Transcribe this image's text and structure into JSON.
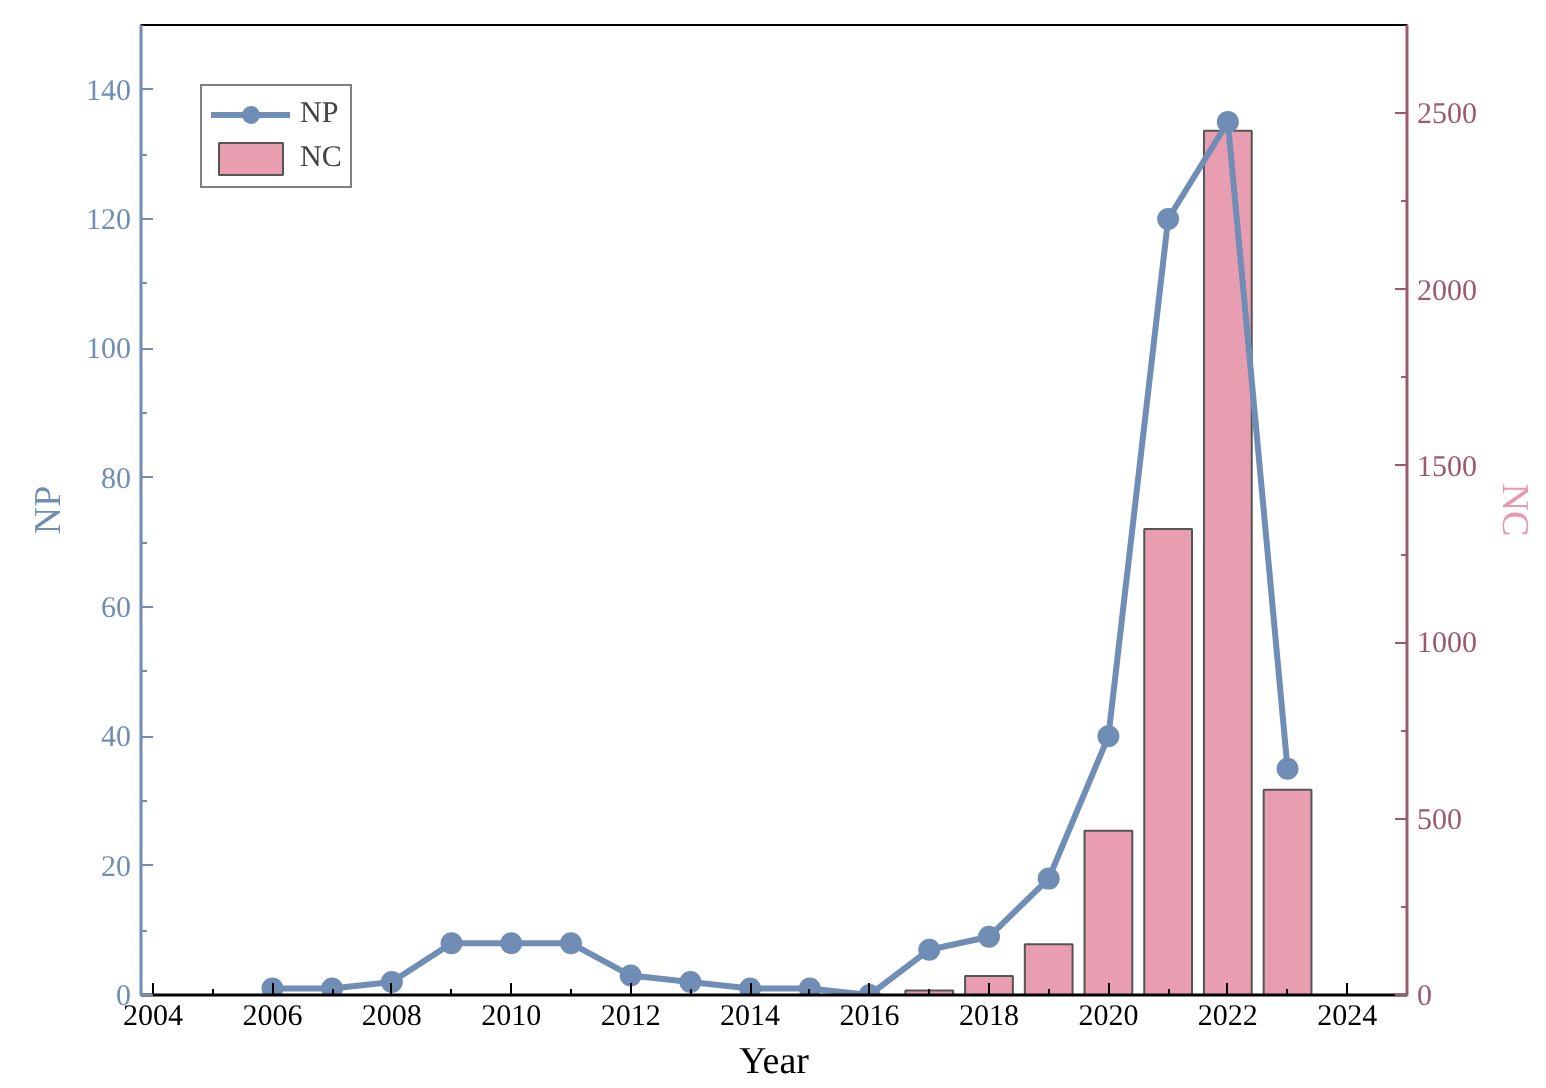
{
  "chart_data": {
    "type": "line",
    "xlabel": "Year",
    "ylabel": "NP",
    "y2label": "NC",
    "x": [
      2006,
      2007,
      2008,
      2009,
      2010,
      2011,
      2012,
      2013,
      2014,
      2015,
      2016,
      2017,
      2018,
      2019,
      2020,
      2021,
      2022,
      2023
    ],
    "series": [
      {
        "name": "NP",
        "color": "#6f8db5",
        "values": [
          1,
          1,
          2,
          8,
          8,
          8,
          3,
          2,
          1,
          1,
          0,
          7,
          9,
          18,
          40,
          120,
          135,
          35
        ]
      },
      {
        "name": "NC",
        "type": "bar",
        "axis": "y2",
        "color": "#e89db0",
        "values": [
          null,
          null,
          null,
          null,
          null,
          null,
          null,
          null,
          null,
          null,
          null,
          13,
          54,
          144,
          466,
          1321,
          2450,
          582
        ]
      }
    ],
    "xlim": [
      2003.8,
      2025
    ],
    "xticks": [
      2004,
      2006,
      2008,
      2010,
      2012,
      2014,
      2016,
      2018,
      2020,
      2022,
      2024
    ],
    "ylim": [
      0,
      150
    ],
    "yticks": [
      0,
      20,
      40,
      60,
      80,
      100,
      120,
      140
    ],
    "y2lim": [
      0,
      2750
    ],
    "y2ticks": [
      0,
      500,
      1000,
      1500,
      2000,
      2500
    ],
    "marker": "circle",
    "legend": "top left",
    "grid": false
  }
}
